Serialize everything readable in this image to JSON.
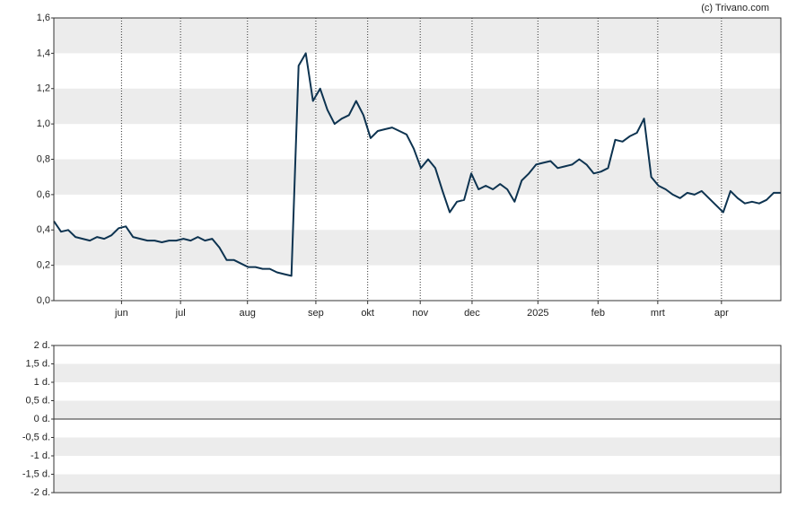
{
  "chart_data": [
    {
      "type": "line",
      "source": "(c) Trivano.com",
      "color": "#0d3350",
      "grid": true,
      "xlim": [
        0,
        101
      ],
      "xticks": [
        {
          "value": 9.4,
          "label": "jun"
        },
        {
          "value": 17.6,
          "label": "jul"
        },
        {
          "value": 26.9,
          "label": "aug"
        },
        {
          "value": 36.4,
          "label": "sep"
        },
        {
          "value": 43.6,
          "label": "okt"
        },
        {
          "value": 50.9,
          "label": "nov"
        },
        {
          "value": 58.1,
          "label": "dec"
        },
        {
          "value": 67.25,
          "label": "2025"
        },
        {
          "value": 75.6,
          "label": "feb"
        },
        {
          "value": 83.9,
          "label": "mrt"
        },
        {
          "value": 92.75,
          "label": "apr"
        }
      ],
      "ylim": [
        0,
        1.6
      ],
      "yticks": [
        {
          "value": 0,
          "label": "0,0"
        },
        {
          "value": 0.2,
          "label": "0,2"
        },
        {
          "value": 0.4,
          "label": "0,4"
        },
        {
          "value": 0.6,
          "label": "0,6"
        },
        {
          "value": 0.8,
          "label": "0,8"
        },
        {
          "value": 1.0,
          "label": "1,0"
        },
        {
          "value": 1.2,
          "label": "1,2"
        },
        {
          "value": 1.4,
          "label": "1,4"
        },
        {
          "value": 1.6,
          "label": "1,6"
        }
      ],
      "values": [
        0.45,
        0.39,
        0.4,
        0.36,
        0.35,
        0.34,
        0.36,
        0.35,
        0.37,
        0.41,
        0.42,
        0.36,
        0.35,
        0.34,
        0.34,
        0.33,
        0.34,
        0.34,
        0.35,
        0.34,
        0.36,
        0.34,
        0.35,
        0.3,
        0.23,
        0.23,
        0.21,
        0.19,
        0.19,
        0.18,
        0.18,
        0.16,
        0.15,
        0.14,
        1.33,
        1.4,
        1.13,
        1.2,
        1.08,
        1.0,
        1.03,
        1.05,
        1.13,
        1.05,
        0.92,
        0.96,
        0.97,
        0.98,
        0.96,
        0.94,
        0.86,
        0.75,
        0.8,
        0.75,
        0.62,
        0.5,
        0.56,
        0.57,
        0.72,
        0.63,
        0.65,
        0.63,
        0.66,
        0.63,
        0.56,
        0.68,
        0.72,
        0.77,
        0.78,
        0.79,
        0.75,
        0.76,
        0.77,
        0.8,
        0.77,
        0.72,
        0.73,
        0.75,
        0.91,
        0.9,
        0.93,
        0.95,
        1.03,
        0.7,
        0.65,
        0.63,
        0.6,
        0.58,
        0.61,
        0.6,
        0.62,
        0.58,
        0.54,
        0.5,
        0.62,
        0.58,
        0.55,
        0.56,
        0.55,
        0.57,
        0.61,
        0.61
      ]
    },
    {
      "type": "bar",
      "grid": true,
      "ylim": [
        -2,
        2
      ],
      "yticks": [
        {
          "value": -2,
          "label": "-2 d."
        },
        {
          "value": -1.5,
          "label": "-1,5 d."
        },
        {
          "value": -1,
          "label": "-1 d."
        },
        {
          "value": -0.5,
          "label": "-0,5 d."
        },
        {
          "value": 0,
          "label": "0 d."
        },
        {
          "value": 0.5,
          "label": "0,5 d."
        },
        {
          "value": 1,
          "label": "1 d."
        },
        {
          "value": 1.5,
          "label": "1,5 d."
        },
        {
          "value": 2,
          "label": "2 d."
        }
      ]
    }
  ]
}
